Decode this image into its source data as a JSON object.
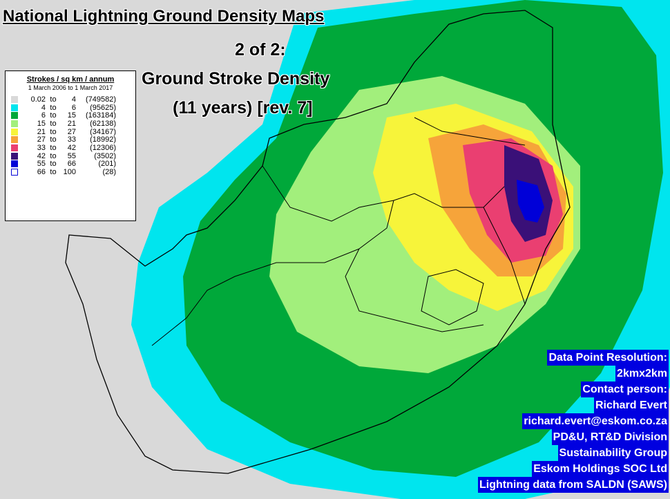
{
  "title": "National Lightning Ground Density Maps",
  "subtitle_lines": [
    "2 of 2:",
    "Ground Stroke Density",
    "(11 years) [rev. 7]"
  ],
  "legend": {
    "title": "Strokes / sq km / annum",
    "period": "1 March 2006 to 1 March 2017",
    "rows": [
      {
        "lo": "0.02",
        "to": "to",
        "hi": "4",
        "count": "(749582)",
        "color": "#d9d9d9"
      },
      {
        "lo": "4",
        "to": "to",
        "hi": "6",
        "count": "(95625)",
        "color": "#00e5ee"
      },
      {
        "lo": "6",
        "to": "to",
        "hi": "15",
        "count": "(163184)",
        "color": "#00a83a"
      },
      {
        "lo": "15",
        "to": "to",
        "hi": "21",
        "count": "(62138)",
        "color": "#a2ef7c"
      },
      {
        "lo": "21",
        "to": "to",
        "hi": "27",
        "count": "(34167)",
        "color": "#f7f43a"
      },
      {
        "lo": "27",
        "to": "to",
        "hi": "33",
        "count": "(18992)",
        "color": "#f6a43a"
      },
      {
        "lo": "33",
        "to": "to",
        "hi": "42",
        "count": "(12306)",
        "color": "#ea3f71"
      },
      {
        "lo": "42",
        "to": "to",
        "hi": "55",
        "count": "(3502)",
        "color": "#3a1078"
      },
      {
        "lo": "55",
        "to": "to",
        "hi": "66",
        "count": "(201)",
        "color": "#0000d8"
      },
      {
        "lo": "66",
        "to": "to",
        "hi": "100",
        "count": "(28)",
        "color": "#ffffff"
      }
    ]
  },
  "info_lines": [
    "Data Point Resolution:",
    "2kmx2km",
    "Contact person:",
    "Richard Evert",
    "richard.evert@eskom.co.za",
    "PD&U, RT&D Division",
    "Sustainability Group",
    "Eskom Holdings SOC Ltd",
    "Lightning data from SALDN (SAWS)"
  ]
}
